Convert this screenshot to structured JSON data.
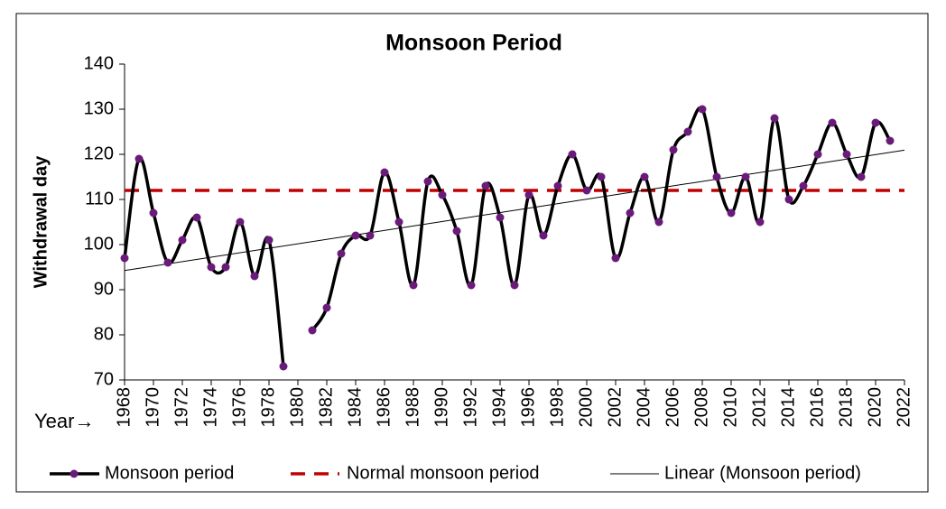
{
  "chart_data": {
    "type": "line",
    "title": "Monsoon Period",
    "y_label": "Withdrawal day",
    "x_label": "Year→",
    "x": [
      1968,
      1969,
      1970,
      1971,
      1972,
      1973,
      1974,
      1975,
      1976,
      1977,
      1978,
      1979,
      1980,
      1981,
      1982,
      1983,
      1984,
      1985,
      1986,
      1987,
      1988,
      1989,
      1990,
      1991,
      1992,
      1993,
      1994,
      1995,
      1996,
      1997,
      1998,
      1999,
      2000,
      2001,
      2002,
      2003,
      2004,
      2005,
      2006,
      2007,
      2008,
      2009,
      2010,
      2011,
      2012,
      2013,
      2014,
      2015,
      2016,
      2017,
      2018,
      2019,
      2020,
      2021
    ],
    "series": [
      {
        "name": "Monsoon period",
        "color": "#000000",
        "marker_color": "#6a1b7a",
        "values": [
          97,
          119,
          107,
          96,
          101,
          106,
          95,
          95,
          105,
          93,
          101,
          73,
          null,
          81,
          86,
          98,
          102,
          102,
          116,
          105,
          91,
          114,
          111,
          103,
          91,
          113,
          106,
          91,
          111,
          102,
          113,
          120,
          112,
          115,
          97,
          107,
          115,
          105,
          121,
          125,
          130,
          115,
          107,
          115,
          105,
          128,
          110,
          113,
          120,
          127,
          120,
          115,
          127,
          123
        ]
      }
    ],
    "normal": {
      "name": "Normal monsoon period",
      "color": "#c00000",
      "value": 112
    },
    "trend": {
      "name": "Linear (Monsoon period)",
      "color": "#000000"
    },
    "xlim": [
      1968,
      2022
    ],
    "xticks": [
      1968,
      1970,
      1972,
      1974,
      1976,
      1978,
      1980,
      1982,
      1984,
      1986,
      1988,
      1990,
      1992,
      1994,
      1996,
      1998,
      2000,
      2002,
      2004,
      2006,
      2008,
      2010,
      2012,
      2014,
      2016,
      2018,
      2020,
      2022
    ],
    "ylim": [
      70,
      140
    ],
    "yticks": [
      70,
      80,
      90,
      100,
      110,
      120,
      130,
      140
    ]
  }
}
